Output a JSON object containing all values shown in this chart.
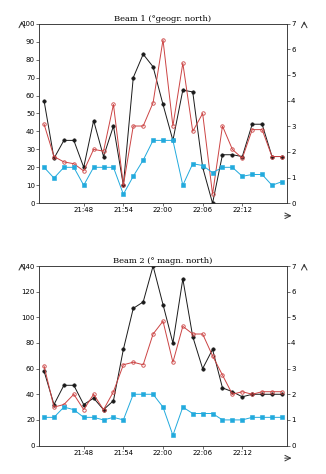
{
  "title1": "Beam 1 (°geogr. north)",
  "title2": "Beam 2 (° magn. north)",
  "xtick_labels": [
    "21:48",
    "21:54",
    "22:00",
    "22:06",
    "22:12"
  ],
  "xtick_positions": [
    4,
    8,
    12,
    16,
    20
  ],
  "n_points": 25,
  "beam1": {
    "ylim": [
      0,
      100
    ],
    "y2lim": [
      0,
      7
    ],
    "yticks": [
      0,
      10,
      20,
      30,
      40,
      50,
      60,
      70,
      80,
      90,
      100
    ],
    "y2ticks": [
      0,
      1,
      2,
      3,
      4,
      5,
      6,
      7
    ],
    "black_line": [
      57,
      25,
      35,
      35,
      20,
      46,
      26,
      43,
      10,
      70,
      83,
      76,
      55,
      35,
      63,
      62,
      20,
      0,
      27,
      27,
      26,
      44,
      44,
      26,
      26
    ],
    "red_line": [
      44,
      26,
      23,
      22,
      18,
      30,
      29,
      55,
      10,
      43,
      43,
      56,
      91,
      43,
      78,
      40,
      50,
      5,
      43,
      30,
      25,
      41,
      41,
      26,
      26
    ],
    "cyan_line": [
      20,
      14,
      20,
      20,
      10,
      20,
      20,
      20,
      5,
      15,
      24,
      35,
      35,
      35,
      10,
      22,
      21,
      17,
      20,
      20,
      15,
      16,
      16,
      10,
      12
    ]
  },
  "beam2": {
    "ylim": [
      0,
      140
    ],
    "y2lim": [
      0,
      7
    ],
    "yticks": [
      0,
      20,
      40,
      60,
      80,
      100,
      120,
      140
    ],
    "y2ticks": [
      0,
      1,
      2,
      3,
      4,
      5,
      6,
      7
    ],
    "black_line": [
      58,
      32,
      47,
      47,
      32,
      37,
      28,
      35,
      75,
      107,
      112,
      140,
      110,
      80,
      130,
      85,
      60,
      75,
      45,
      42,
      38,
      40,
      40,
      40,
      40
    ],
    "red_line": [
      62,
      30,
      32,
      40,
      28,
      40,
      28,
      42,
      63,
      65,
      63,
      87,
      97,
      65,
      93,
      87,
      87,
      70,
      55,
      40,
      42,
      40,
      42,
      42,
      42
    ],
    "cyan_line": [
      22,
      22,
      30,
      28,
      22,
      22,
      20,
      22,
      20,
      40,
      40,
      40,
      30,
      8,
      30,
      25,
      25,
      25,
      20,
      20,
      20,
      22,
      22,
      22,
      22
    ]
  },
  "black_color": "#1a1a1a",
  "red_color": "#cc4444",
  "cyan_color": "#22aadd",
  "background": "#ffffff",
  "title_fontsize": 6.0,
  "tick_fontsize": 5.0,
  "linewidth": 0.7,
  "markersize": 2.5
}
